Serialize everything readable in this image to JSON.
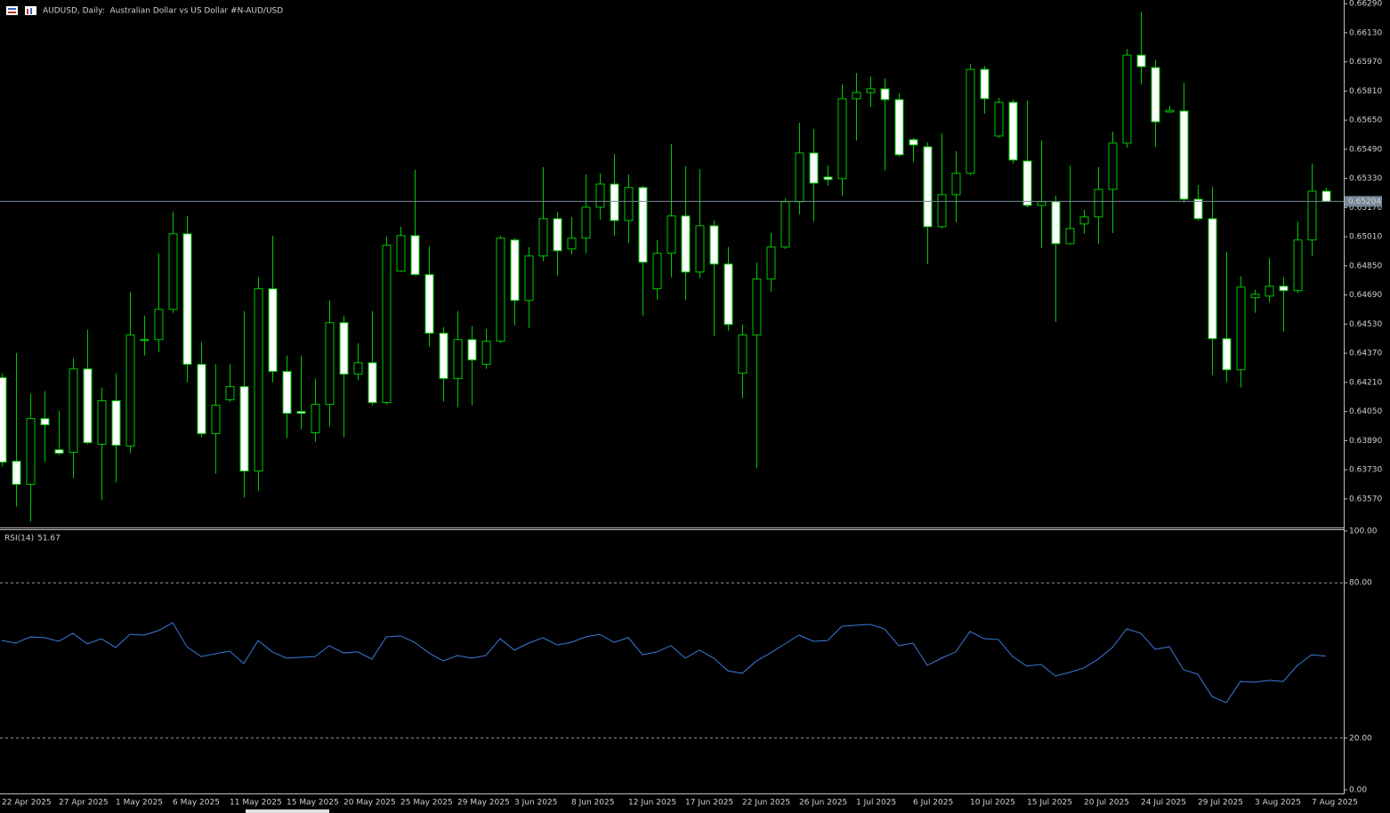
{
  "chart_data": [
    {
      "type": "candlestick",
      "title": "AUDUSD, Daily:  Australian Dollar vs US Dollar #N-AUD/USD",
      "categories": [
        "22 Apr 2025",
        null,
        null,
        null,
        "27 Apr 2025",
        null,
        null,
        null,
        "1 May 2025",
        null,
        null,
        null,
        "6 May 2025",
        null,
        null,
        null,
        "11 May 2025",
        null,
        null,
        null,
        "15 May 2025",
        null,
        null,
        null,
        "20 May 2025",
        null,
        null,
        null,
        "25 May 2025",
        null,
        null,
        null,
        "29 May 2025",
        null,
        null,
        null,
        "3 Jun 2025",
        null,
        null,
        null,
        "8 Jun 2025",
        null,
        null,
        null,
        "12 Jun 2025",
        null,
        null,
        null,
        "17 Jun 2025",
        null,
        null,
        null,
        "22 Jun 2025",
        null,
        null,
        null,
        "26 Jun 2025",
        null,
        null,
        null,
        "1 Jul 2025",
        null,
        null,
        null,
        "6 Jul 2025",
        null,
        null,
        null,
        "10 Jul 2025",
        null,
        null,
        null,
        "15 Jul 2025",
        null,
        null,
        null,
        "20 Jul 2025",
        null,
        null,
        null,
        "24 Jul 2025",
        null,
        null,
        null,
        "29 Jul 2025",
        null,
        null,
        null,
        "3 Aug 2025",
        null,
        null,
        null,
        "7 Aug 2025",
        null
      ],
      "open": [
        0.64236,
        0.63777,
        0.6365,
        0.64011,
        0.6384,
        0.63826,
        0.64284,
        0.6387,
        0.64109,
        0.6386,
        0.64445,
        0.64445,
        0.64611,
        0.65026,
        0.64309,
        0.63928,
        0.64114,
        0.64187,
        0.63723,
        0.64724,
        0.6427,
        0.6405,
        0.63933,
        0.64089,
        0.64538,
        0.64255,
        0.64318,
        0.64099,
        0.64821,
        0.65016,
        0.64802,
        0.6448,
        0.64231,
        0.64445,
        0.64309,
        0.64436,
        0.64992,
        0.6466,
        0.64904,
        0.65109,
        0.64943,
        0.65002,
        0.65172,
        0.65299,
        0.65099,
        0.6528,
        0.64724,
        0.64919,
        0.65124,
        0.64816,
        0.6507,
        0.6486,
        0.6426,
        0.6447,
        0.64777,
        0.64953,
        0.65202,
        0.6547,
        0.65338,
        0.65329,
        0.65768,
        0.65802,
        0.65822,
        0.65763,
        0.65543,
        0.65504,
        0.65065,
        0.65241,
        0.65358,
        0.65929,
        0.65563,
        0.65748,
        0.65426,
        0.65182,
        0.65202,
        0.64972,
        0.6508,
        0.65119,
        0.6527,
        0.65524,
        0.66007,
        0.65939,
        0.65695,
        0.657,
        0.65216,
        0.65109,
        0.6445,
        0.64279,
        0.64675,
        0.64684,
        0.64738,
        0.64714,
        0.64992,
        0.6526
      ],
      "high": [
        0.6426,
        0.64372,
        0.64148,
        0.64162,
        0.64055,
        0.64343,
        0.64499,
        0.64182,
        0.6426,
        0.64709,
        0.64577,
        0.64919,
        0.65148,
        0.65124,
        0.64431,
        0.64309,
        0.64309,
        0.64602,
        0.64787,
        0.65016,
        0.64358,
        0.64358,
        0.64231,
        0.6466,
        0.64577,
        0.64426,
        0.64602,
        0.65011,
        0.65065,
        0.65377,
        0.64958,
        0.64514,
        0.64602,
        0.64519,
        0.64504,
        0.65016,
        0.65002,
        0.64953,
        0.65392,
        0.65148,
        0.65119,
        0.65353,
        0.65358,
        0.65465,
        0.65353,
        0.6529,
        0.64992,
        0.65519,
        0.65397,
        0.65382,
        0.65099,
        0.64953,
        0.64528,
        0.6487,
        0.65031,
        0.65221,
        0.65636,
        0.65602,
        0.65402,
        0.65846,
        0.65909,
        0.6589,
        0.6588,
        0.65797,
        0.65553,
        0.65529,
        0.65578,
        0.6548,
        0.65958,
        0.65948,
        0.65773,
        0.65763,
        0.65758,
        0.65538,
        0.65236,
        0.65402,
        0.65158,
        0.65392,
        0.65587,
        0.66041,
        0.66246,
        0.65983,
        0.65729,
        0.65856,
        0.65294,
        0.65285,
        0.64928,
        0.64792,
        0.64719,
        0.64894,
        0.64787,
        0.65094,
        0.65412,
        0.6528
      ],
      "low": [
        0.63748,
        0.63528,
        0.63445,
        0.63772,
        0.63811,
        0.63684,
        0.6387,
        0.63562,
        0.6366,
        0.63821,
        0.64358,
        0.64377,
        0.64592,
        0.64211,
        0.63909,
        0.63708,
        0.64104,
        0.63577,
        0.63616,
        0.64211,
        0.63904,
        0.63952,
        0.63884,
        0.63967,
        0.63909,
        0.64221,
        0.64084,
        0.64089,
        0.64816,
        0.64797,
        0.64406,
        0.64104,
        0.64074,
        0.64084,
        0.64284,
        0.64426,
        0.64523,
        0.64509,
        0.64875,
        0.64797,
        0.64914,
        0.64919,
        0.65104,
        0.65016,
        0.64977,
        0.64577,
        0.64665,
        0.64787,
        0.6466,
        0.64782,
        0.64465,
        0.64494,
        0.64123,
        0.63738,
        0.64709,
        0.64943,
        0.65133,
        0.65094,
        0.6529,
        0.65236,
        0.65538,
        0.65724,
        0.65373,
        0.65451,
        0.65421,
        0.6486,
        0.65055,
        0.6509,
        0.65348,
        0.65685,
        0.65553,
        0.65412,
        0.65172,
        0.64948,
        0.64543,
        0.64968,
        0.65026,
        0.64972,
        0.65031,
        0.65499,
        0.65846,
        0.65504,
        0.6569,
        0.65197,
        0.65099,
        0.6425,
        0.64211,
        0.64182,
        0.64592,
        0.6465,
        0.64489,
        0.64699,
        0.64904,
        0.65202
      ],
      "close": [
        0.63772,
        0.6365,
        0.64011,
        0.63977,
        0.63821,
        0.64284,
        0.63879,
        0.64109,
        0.63865,
        0.6447,
        0.6444,
        0.64611,
        0.65026,
        0.64309,
        0.63928,
        0.64084,
        0.64187,
        0.63723,
        0.64724,
        0.6427,
        0.6404,
        0.6404,
        0.64089,
        0.64538,
        0.64255,
        0.64318,
        0.64099,
        0.64963,
        0.65016,
        0.64802,
        0.6448,
        0.64231,
        0.64445,
        0.64333,
        0.64436,
        0.65002,
        0.6466,
        0.64904,
        0.65109,
        0.64933,
        0.65002,
        0.65172,
        0.65299,
        0.65099,
        0.6528,
        0.6487,
        0.64919,
        0.65124,
        0.64816,
        0.6507,
        0.6486,
        0.64528,
        0.6447,
        0.64777,
        0.64953,
        0.65202,
        0.6547,
        0.65304,
        0.65324,
        0.65768,
        0.65802,
        0.65822,
        0.65763,
        0.6546,
        0.65514,
        0.65065,
        0.65241,
        0.65358,
        0.65929,
        0.65768,
        0.65748,
        0.65431,
        0.65182,
        0.65202,
        0.64972,
        0.65055,
        0.65119,
        0.6527,
        0.65524,
        0.66007,
        0.65944,
        0.65641,
        0.65704,
        0.65216,
        0.65109,
        0.6445,
        0.64279,
        0.64733,
        0.64694,
        0.64738,
        0.64714,
        0.64992,
        0.6526,
        0.65204
      ],
      "wick_color": "#00c800",
      "up_fill": "#000000",
      "down_fill": "#ffffff",
      "last_price": 0.65204,
      "last_price_color": "#778899",
      "ylim": [
        0.63418,
        0.6631
      ],
      "yticks": [
        {
          "value": 0.6629,
          "label": "0.66290"
        },
        {
          "value": 0.6613,
          "label": "0.66130"
        },
        {
          "value": 0.6597,
          "label": "0.65970"
        },
        {
          "value": 0.6581,
          "label": "0.65810"
        },
        {
          "value": 0.6565,
          "label": "0.65650"
        },
        {
          "value": 0.6549,
          "label": "0.65490"
        },
        {
          "value": 0.6533,
          "label": "0.65330"
        },
        {
          "value": 0.6517,
          "label": "0.65170"
        },
        {
          "value": 0.6501,
          "label": "0.65010"
        },
        {
          "value": 0.6485,
          "label": "0.64850"
        },
        {
          "value": 0.6469,
          "label": "0.64690"
        },
        {
          "value": 0.6453,
          "label": "0.64530"
        },
        {
          "value": 0.6437,
          "label": "0.64370"
        },
        {
          "value": 0.6421,
          "label": "0.64210"
        },
        {
          "value": 0.6405,
          "label": "0.64050"
        },
        {
          "value": 0.6389,
          "label": "0.63890"
        },
        {
          "value": 0.6373,
          "label": "0.63730"
        },
        {
          "value": 0.6357,
          "label": "0.63570"
        }
      ]
    },
    {
      "type": "line",
      "title": "RSI(14)",
      "color": "#3a7bdc",
      "values": [
        57.7,
        56.7,
        59.1,
        58.8,
        57.4,
        60.5,
        56.4,
        58.4,
        55.0,
        60.1,
        59.8,
        61.5,
        64.6,
        55.3,
        51.5,
        52.6,
        53.6,
        48.8,
        57.7,
        53.3,
        50.9,
        51.2,
        51.5,
        55.7,
        52.9,
        53.3,
        50.5,
        59.1,
        59.5,
        57.0,
        52.9,
        49.8,
        51.9,
        50.9,
        51.9,
        58.4,
        54.0,
        56.7,
        58.8,
        56.0,
        57.0,
        59.1,
        60.1,
        57.0,
        58.8,
        52.2,
        53.3,
        55.7,
        50.9,
        54.0,
        50.9,
        46.0,
        45.0,
        49.8,
        52.9,
        56.4,
        59.8,
        57.4,
        57.7,
        63.2,
        63.6,
        63.9,
        62.2,
        55.7,
        56.7,
        48.1,
        50.9,
        53.3,
        61.2,
        58.4,
        58.1,
        51.5,
        47.8,
        48.5,
        44.0,
        45.4,
        47.1,
        50.5,
        55.0,
        62.2,
        60.5,
        54.3,
        55.3,
        46.4,
        44.7,
        36.1,
        33.7,
        41.9,
        41.6,
        42.3,
        41.9,
        48.1,
        52.2,
        51.67
      ],
      "ylim": [
        0,
        100
      ],
      "yticks": [
        {
          "value": 100,
          "label": "100.00"
        },
        {
          "value": 80,
          "label": "80.00"
        },
        {
          "value": 20,
          "label": "20.00"
        },
        {
          "value": 0,
          "label": "0.00"
        }
      ]
    }
  ]
}
